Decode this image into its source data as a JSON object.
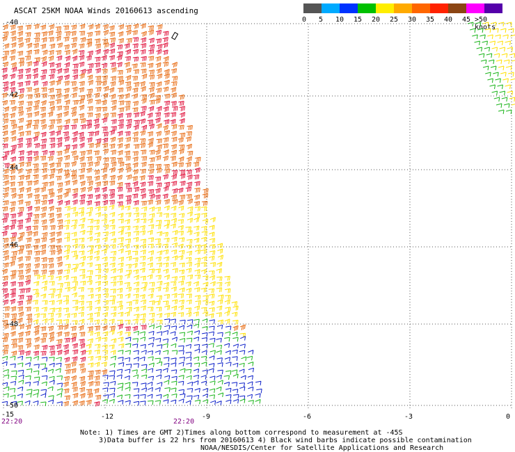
{
  "title": "ASCAT 25KM NOAA Winds 20160613 ascending",
  "legend": {
    "colors": [
      "#555555",
      "#888888",
      "#00aaff",
      "#0033ff",
      "#00c000",
      "#ffee00",
      "#ffaa00",
      "#ff6600",
      "#ff2200",
      "#8b4513",
      "#ff00ff",
      "#aa00ff",
      "#5500aa"
    ],
    "labels": [
      "0",
      "5",
      "10",
      "15",
      "20",
      "25",
      "30",
      "35",
      "40",
      "45",
      ">50 knots"
    ]
  },
  "axes": {
    "lon_labels": [
      "-15",
      "-12",
      "-9",
      "-6",
      "-3",
      "0"
    ],
    "lat_labels": [
      "-40",
      "-42",
      "-44",
      "-46",
      "-48",
      "-50"
    ],
    "lon_range": [
      -15,
      0
    ],
    "lat_range": [
      -40,
      -50
    ]
  },
  "times": [
    "22:20",
    "22:20"
  ],
  "note": {
    "line1": "Note: 1) Times are GMT 2)Times along bottom correspond to measurement at -45S",
    "line2": "3)Data buffer is 22 hrs from 20160613 4) Black wind barbs indicate possible contamination",
    "line3": "NOAA/NESDIS/Center for Satellite Applications and Research"
  },
  "colors": {
    "strong": "#e0103a",
    "orange": "#e86a10",
    "yellow": "#ffe000",
    "green": "#19b419",
    "blue": "#0a1ec8",
    "grid": "#555555"
  }
}
